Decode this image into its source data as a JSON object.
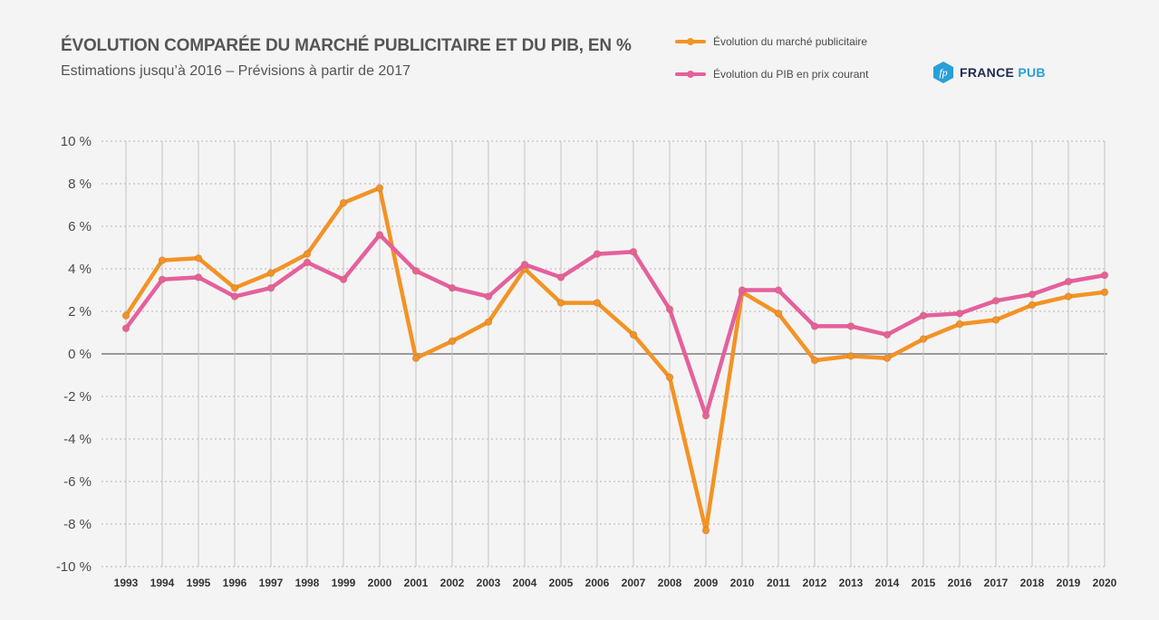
{
  "header": {
    "title": "ÉVOLUTION COMPARÉE DU MARCHÉ PUBLICITAIRE ET DU PIB, EN %",
    "subtitle": "Estimations jusqu’à 2016 – Prévisions à partir de 2017"
  },
  "logo": {
    "icon": "fp-hexagon-icon",
    "text_main": "FRANCE",
    "text_accent": "PUB",
    "color_main": "#1d2b4f",
    "color_accent": "#2a9fd8"
  },
  "chart_data": {
    "type": "line",
    "ylim": [
      -10,
      10
    ],
    "yticks": [
      10,
      8,
      6,
      4,
      2,
      0,
      -2,
      -4,
      -6,
      -8,
      -10
    ],
    "ytick_labels": [
      "10 %",
      "8 %",
      "6 %",
      "4 %",
      "2 %",
      "0 %",
      "-2 %",
      "-4 %",
      "-6 %",
      "-8 %",
      "-10 %"
    ],
    "grid": true,
    "legend_position": "top-right",
    "x": [
      "1993",
      "1994",
      "1995",
      "1996",
      "1997",
      "1998",
      "1999",
      "2000",
      "2001",
      "2002",
      "2003",
      "2004",
      "2005",
      "2006",
      "2007",
      "2008",
      "2009",
      "2010",
      "2011",
      "2012",
      "2013",
      "2014",
      "2015",
      "2016",
      "2017",
      "2018",
      "2019",
      "2020"
    ],
    "series": [
      {
        "name": "Évolution du marché publicitaire",
        "color": "#f39325",
        "values": [
          1.8,
          4.4,
          4.5,
          3.1,
          3.8,
          4.7,
          7.1,
          7.8,
          -0.2,
          0.6,
          1.5,
          4.0,
          2.4,
          2.4,
          0.9,
          -1.1,
          -8.3,
          2.9,
          1.9,
          -0.3,
          -0.1,
          -0.2,
          0.7,
          1.4,
          1.6,
          2.3,
          2.7,
          2.9
        ]
      },
      {
        "name": "Évolution du  PIB en prix courant",
        "color": "#e5609c",
        "values": [
          1.2,
          3.5,
          3.6,
          2.7,
          3.1,
          4.3,
          3.5,
          5.6,
          3.9,
          3.1,
          2.7,
          4.2,
          3.6,
          4.7,
          4.8,
          2.1,
          -2.9,
          3.0,
          3.0,
          1.3,
          1.3,
          0.9,
          1.8,
          1.9,
          2.5,
          2.8,
          3.4,
          3.7
        ]
      }
    ]
  }
}
